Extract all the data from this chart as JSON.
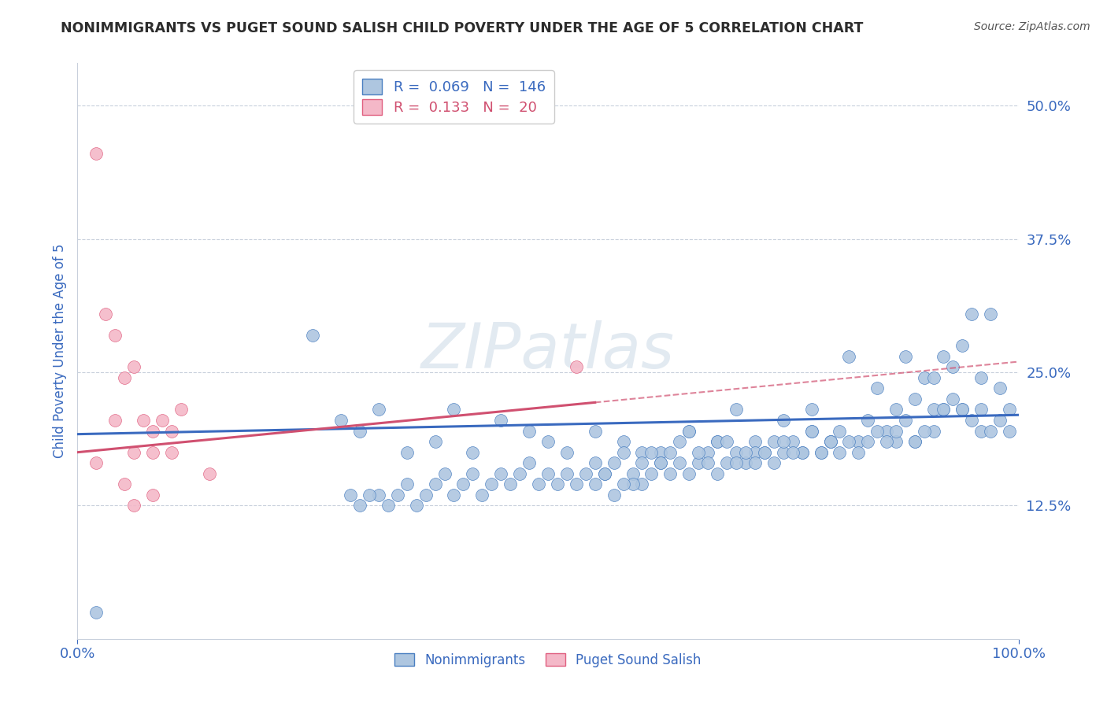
{
  "title": "NONIMMIGRANTS VS PUGET SOUND SALISH CHILD POVERTY UNDER THE AGE OF 5 CORRELATION CHART",
  "source": "Source: ZipAtlas.com",
  "ylabel": "Child Poverty Under the Age of 5",
  "xlim": [
    0,
    1.0
  ],
  "ylim": [
    0.0,
    0.54
  ],
  "yticks": [
    0.125,
    0.25,
    0.375,
    0.5
  ],
  "ytick_labels": [
    "12.5%",
    "25.0%",
    "37.5%",
    "50.0%"
  ],
  "xticks": [
    0.0,
    1.0
  ],
  "xtick_labels": [
    "0.0%",
    "100.0%"
  ],
  "blue_R": 0.069,
  "blue_N": 146,
  "pink_R": 0.133,
  "pink_N": 20,
  "blue_color": "#aec6e0",
  "pink_color": "#f4b8c8",
  "blue_edge_color": "#4a7fc1",
  "pink_edge_color": "#e06080",
  "blue_line_color": "#3a6abf",
  "pink_line_color": "#d05070",
  "legend_label_blue": "Nonimmigrants",
  "legend_label_pink": "Puget Sound Salish",
  "watermark": "ZIPatlas",
  "background_color": "#ffffff",
  "title_color": "#2c2c2c",
  "axis_color": "#3a6abf",
  "grid_color": "#c8d0dc",
  "blue_line_intercept": 0.192,
  "blue_line_slope": 0.018,
  "pink_line_intercept": 0.175,
  "pink_line_slope": 0.085,
  "blue_scatter_x": [
    0.02,
    0.28,
    0.3,
    0.32,
    0.35,
    0.38,
    0.4,
    0.42,
    0.45,
    0.48,
    0.5,
    0.52,
    0.55,
    0.58,
    0.6,
    0.62,
    0.65,
    0.68,
    0.7,
    0.72,
    0.75,
    0.78,
    0.8,
    0.82,
    0.85,
    0.87,
    0.88,
    0.89,
    0.9,
    0.91,
    0.92,
    0.93,
    0.94,
    0.95,
    0.96,
    0.97,
    0.98,
    0.99,
    0.92,
    0.94,
    0.96,
    0.91,
    0.89,
    0.87,
    0.86,
    0.84,
    0.83,
    0.81,
    0.8,
    0.79,
    0.78,
    0.77,
    0.76,
    0.75,
    0.74,
    0.73,
    0.72,
    0.71,
    0.7,
    0.69,
    0.68,
    0.67,
    0.66,
    0.65,
    0.64,
    0.63,
    0.62,
    0.61,
    0.6,
    0.59,
    0.58,
    0.57,
    0.56,
    0.55,
    0.54,
    0.53,
    0.52,
    0.51,
    0.5,
    0.49,
    0.48,
    0.47,
    0.46,
    0.45,
    0.44,
    0.43,
    0.42,
    0.41,
    0.4,
    0.39,
    0.38,
    0.37,
    0.36,
    0.35,
    0.34,
    0.33,
    0.32,
    0.31,
    0.3,
    0.29,
    0.93,
    0.94,
    0.95,
    0.96,
    0.97,
    0.98,
    0.99,
    0.92,
    0.91,
    0.9,
    0.89,
    0.88,
    0.87,
    0.86,
    0.85,
    0.84,
    0.83,
    0.82,
    0.81,
    0.8,
    0.79,
    0.78,
    0.77,
    0.76,
    0.75,
    0.74,
    0.73,
    0.72,
    0.71,
    0.7,
    0.69,
    0.68,
    0.67,
    0.66,
    0.65,
    0.64,
    0.63,
    0.62,
    0.61,
    0.6,
    0.59,
    0.58,
    0.57,
    0.56,
    0.55,
    0.25
  ],
  "blue_scatter_y": [
    0.025,
    0.205,
    0.195,
    0.215,
    0.175,
    0.185,
    0.215,
    0.175,
    0.205,
    0.195,
    0.185,
    0.175,
    0.195,
    0.185,
    0.175,
    0.175,
    0.195,
    0.185,
    0.215,
    0.185,
    0.205,
    0.215,
    0.185,
    0.265,
    0.235,
    0.185,
    0.265,
    0.225,
    0.245,
    0.245,
    0.265,
    0.255,
    0.275,
    0.305,
    0.245,
    0.305,
    0.235,
    0.215,
    0.215,
    0.215,
    0.215,
    0.215,
    0.185,
    0.215,
    0.195,
    0.205,
    0.185,
    0.195,
    0.185,
    0.175,
    0.195,
    0.175,
    0.185,
    0.175,
    0.185,
    0.175,
    0.175,
    0.165,
    0.175,
    0.165,
    0.185,
    0.175,
    0.165,
    0.195,
    0.185,
    0.175,
    0.165,
    0.175,
    0.165,
    0.155,
    0.175,
    0.165,
    0.155,
    0.165,
    0.155,
    0.145,
    0.155,
    0.145,
    0.155,
    0.145,
    0.165,
    0.155,
    0.145,
    0.155,
    0.145,
    0.135,
    0.155,
    0.145,
    0.135,
    0.155,
    0.145,
    0.135,
    0.125,
    0.145,
    0.135,
    0.125,
    0.135,
    0.135,
    0.125,
    0.135,
    0.225,
    0.215,
    0.205,
    0.195,
    0.195,
    0.205,
    0.195,
    0.215,
    0.195,
    0.195,
    0.185,
    0.205,
    0.195,
    0.185,
    0.195,
    0.185,
    0.175,
    0.185,
    0.175,
    0.185,
    0.175,
    0.195,
    0.175,
    0.175,
    0.185,
    0.165,
    0.175,
    0.165,
    0.175,
    0.165,
    0.185,
    0.155,
    0.165,
    0.175,
    0.155,
    0.165,
    0.155,
    0.165,
    0.155,
    0.145,
    0.145,
    0.145,
    0.135,
    0.155,
    0.145,
    0.285
  ],
  "pink_scatter_x": [
    0.02,
    0.03,
    0.04,
    0.05,
    0.06,
    0.07,
    0.08,
    0.09,
    0.1,
    0.11,
    0.04,
    0.06,
    0.08,
    0.1,
    0.14,
    0.02,
    0.05,
    0.08,
    0.06,
    0.53
  ],
  "pink_scatter_y": [
    0.455,
    0.305,
    0.285,
    0.245,
    0.255,
    0.205,
    0.195,
    0.205,
    0.195,
    0.215,
    0.205,
    0.175,
    0.175,
    0.175,
    0.155,
    0.165,
    0.145,
    0.135,
    0.125,
    0.255
  ]
}
